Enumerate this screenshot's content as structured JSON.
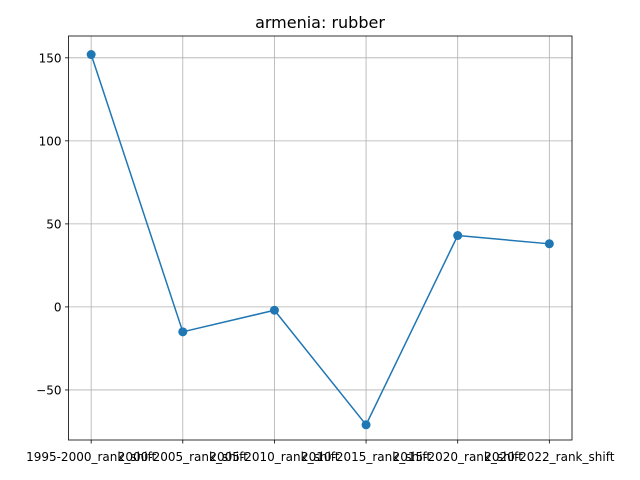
{
  "chart_data": {
    "type": "line",
    "title": "armenia: rubber",
    "xlabel": "",
    "ylabel": "",
    "categories": [
      "1995-2000_rank_shift",
      "2000-2005_rank_shift",
      "2005-2010_rank_shift",
      "2010-2015_rank_shift",
      "2015-2020_rank_shift",
      "2020-2022_rank_shift"
    ],
    "series": [
      {
        "values": [
          152,
          -15,
          -2,
          -71,
          43,
          38
        ]
      }
    ],
    "ylim": [
      -80.15,
      163.15
    ],
    "yticks": [
      -50,
      0,
      50,
      100,
      150
    ],
    "ytick_labels": [
      "−50",
      "0",
      "50",
      "100",
      "150"
    ],
    "grid": true,
    "legend": "none",
    "colors": {
      "line": "#1f77b4",
      "grid": "#b0b0b0",
      "axes": "#000000"
    }
  }
}
